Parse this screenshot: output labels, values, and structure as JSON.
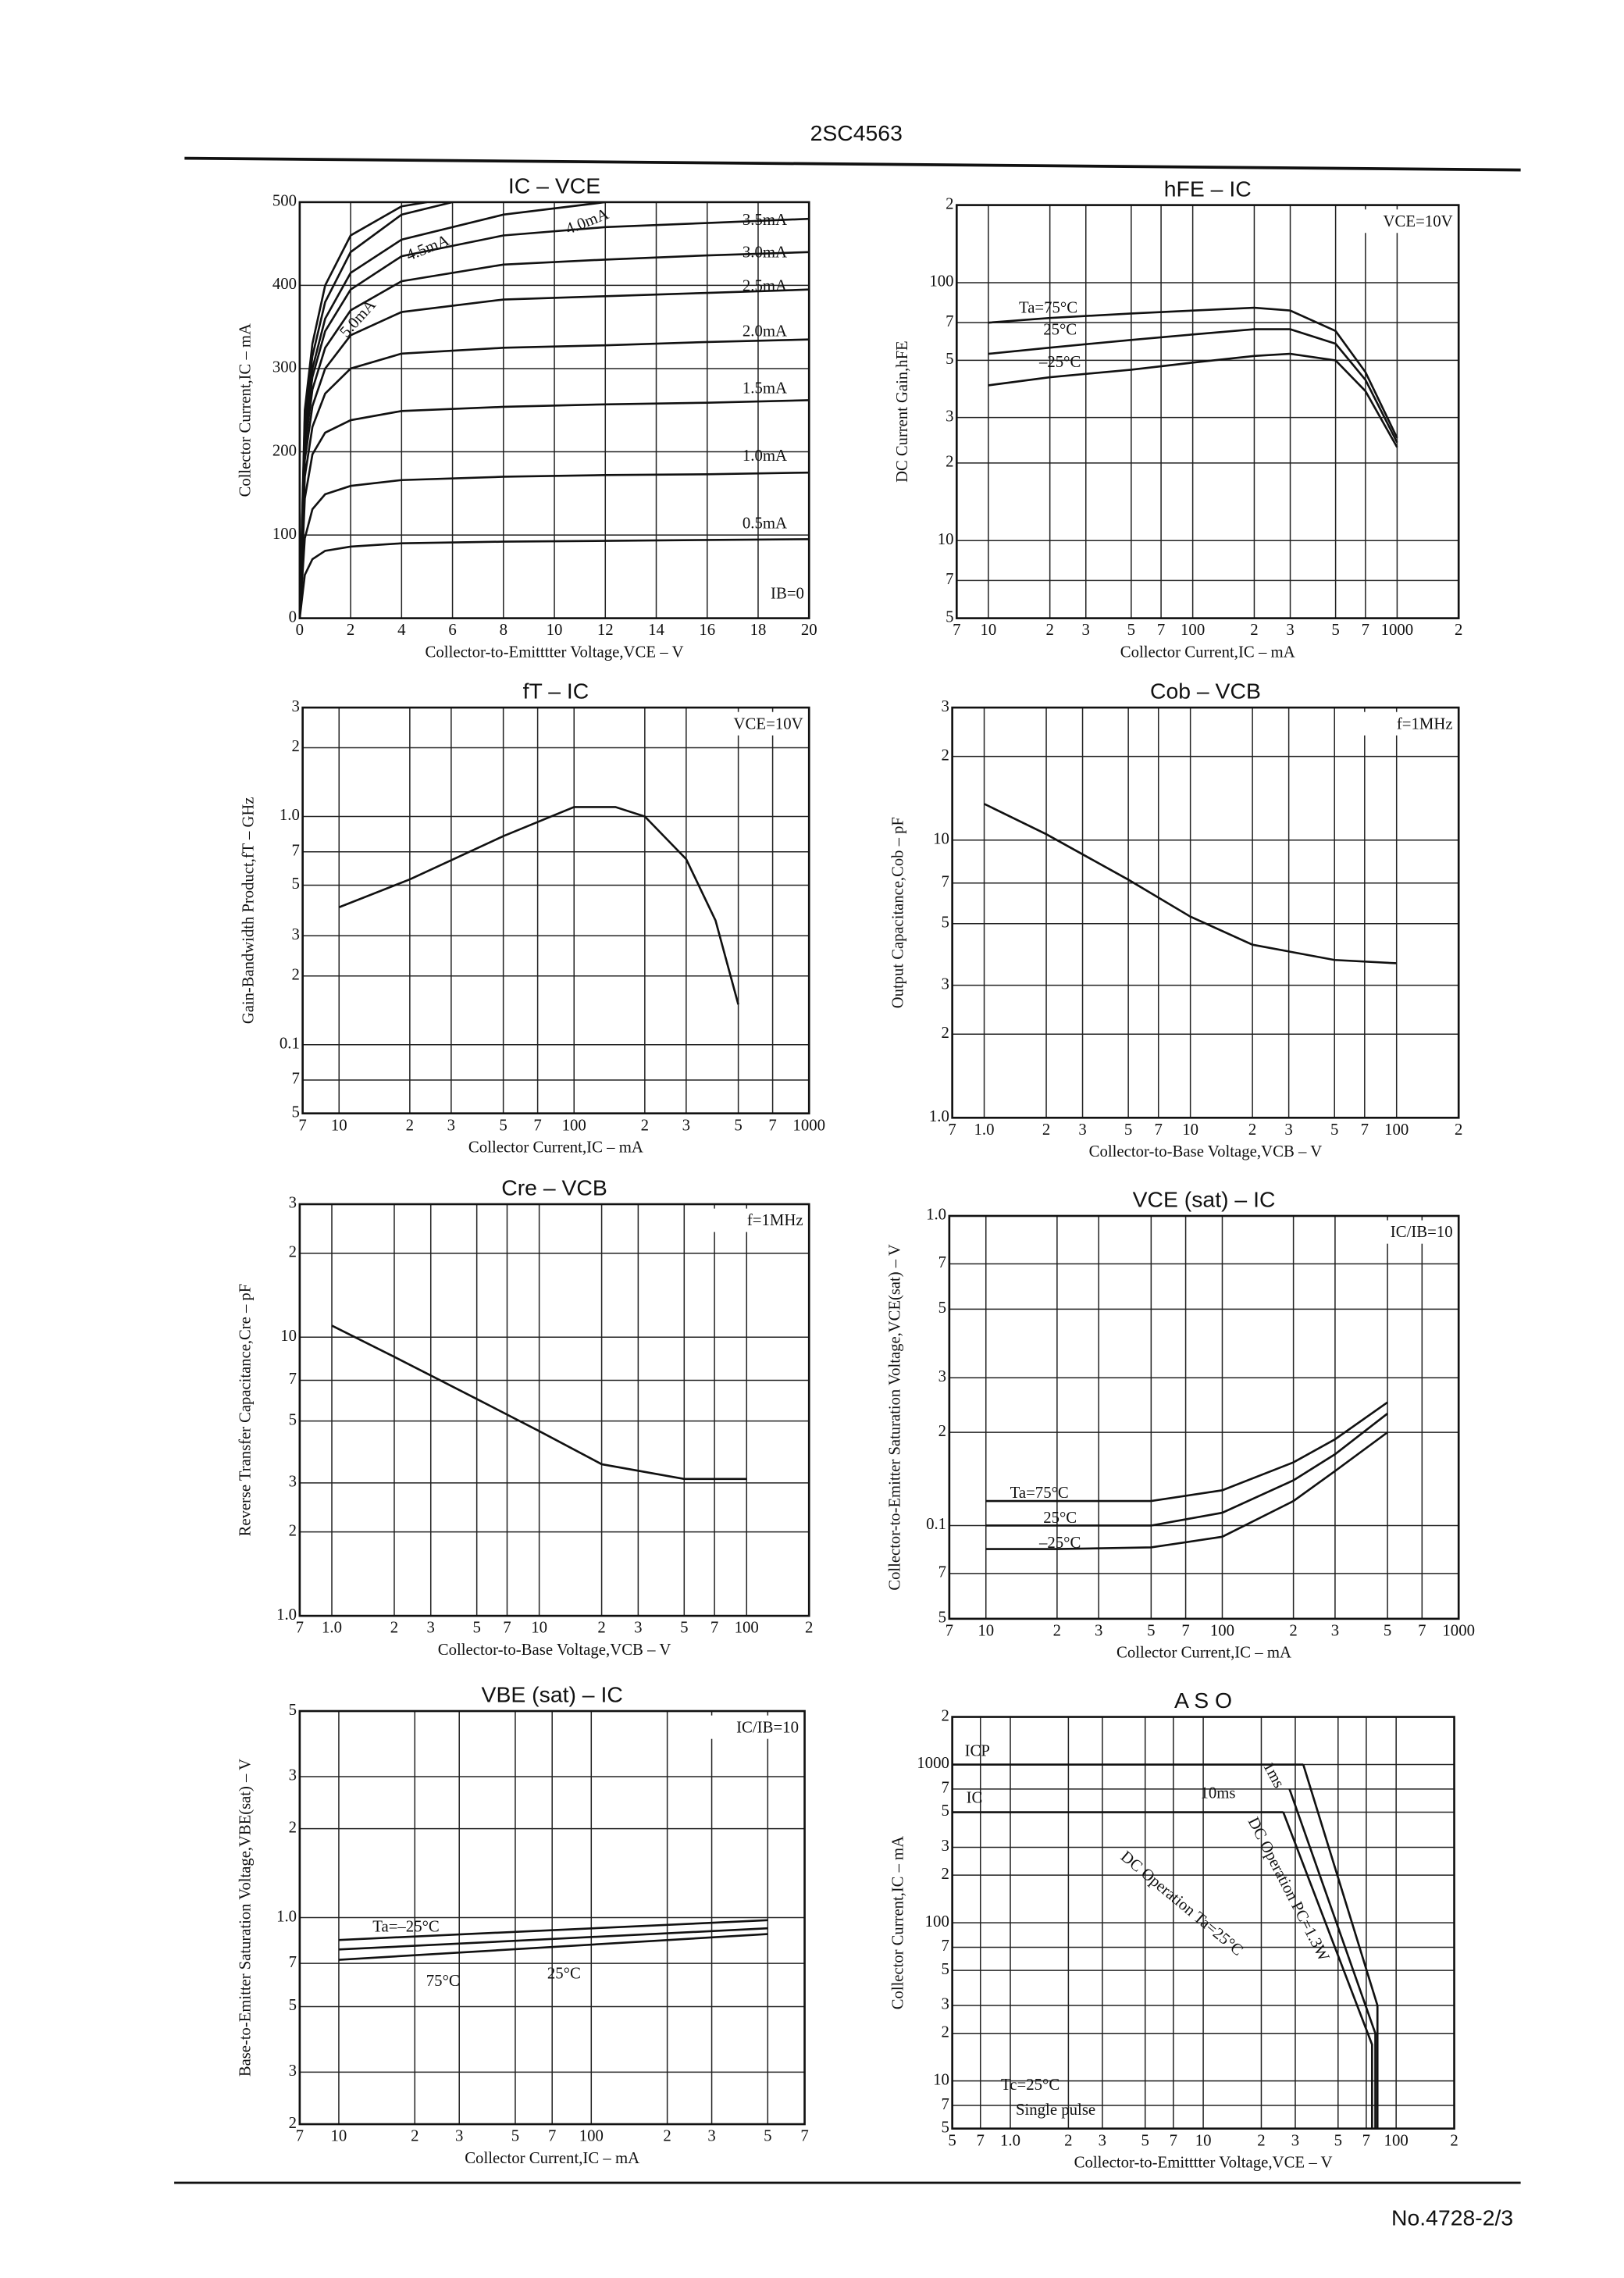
{
  "header": {
    "title": "2SC4563"
  },
  "footer": {
    "text": "No.4728-2/3"
  },
  "chart_data": [
    {
      "type": "line",
      "title": "IC – VCE",
      "x_label": "Collector-to-Emitttter Voltage,VCE – V",
      "y_label": "Collector Current,IC – mA",
      "xscale": "linear",
      "yscale": "linear",
      "grid": true,
      "color": "#111",
      "xlim": [
        0,
        20
      ],
      "ylim": [
        0,
        500
      ],
      "xticks": [
        0,
        2,
        4,
        6,
        8,
        10,
        12,
        14,
        16,
        18,
        20
      ],
      "yticks": [
        0,
        100,
        200,
        300,
        400,
        500
      ],
      "annotations": [
        "IB=0"
      ],
      "series": [
        {
          "name": "0.5mA",
          "x": [
            0,
            0.2,
            0.5,
            1,
            2,
            4,
            8,
            12,
            16,
            20
          ],
          "values": [
            0,
            52,
            71,
            81,
            86,
            90,
            92,
            93,
            94,
            95
          ]
        },
        {
          "name": "1.0mA",
          "x": [
            0,
            0.2,
            0.5,
            1,
            2,
            4,
            8,
            12,
            16,
            20
          ],
          "values": [
            0,
            96,
            131,
            149,
            159,
            166,
            170,
            172,
            173,
            175
          ]
        },
        {
          "name": "1.5mA",
          "x": [
            0,
            0.2,
            0.5,
            1,
            2,
            4,
            8,
            12,
            16,
            20
          ],
          "values": [
            0,
            144,
            197,
            223,
            238,
            249,
            254,
            257,
            259,
            262
          ]
        },
        {
          "name": "2.0mA",
          "x": [
            0,
            0.2,
            0.5,
            1,
            2,
            4,
            8,
            12,
            16,
            20
          ],
          "values": [
            0,
            170,
            230,
            270,
            300,
            318,
            325,
            328,
            332,
            335
          ]
        },
        {
          "name": "2.5mA",
          "x": [
            0,
            0.2,
            0.5,
            1,
            2,
            4,
            8,
            12,
            16,
            20
          ],
          "values": [
            0,
            190,
            255,
            300,
            340,
            368,
            383,
            387,
            391,
            395
          ]
        },
        {
          "name": "3.0mA",
          "x": [
            0,
            0.2,
            0.5,
            1,
            2,
            4,
            8,
            12,
            16,
            20
          ],
          "values": [
            0,
            205,
            275,
            325,
            370,
            405,
            425,
            431,
            436,
            440
          ]
        },
        {
          "name": "3.5mA",
          "x": [
            0,
            0.2,
            0.5,
            1,
            2,
            4,
            8,
            12,
            16,
            20
          ],
          "values": [
            0,
            220,
            290,
            345,
            395,
            435,
            460,
            470,
            475,
            480
          ]
        },
        {
          "name": "4.0mA",
          "x": [
            0,
            0.2,
            0.5,
            1,
            2,
            4,
            8,
            12
          ],
          "values": [
            0,
            230,
            300,
            360,
            415,
            455,
            485,
            500
          ]
        },
        {
          "name": "4.5mA",
          "x": [
            0,
            0.2,
            0.5,
            1,
            2,
            4,
            6
          ],
          "values": [
            0,
            240,
            315,
            380,
            440,
            485,
            500
          ]
        },
        {
          "name": "5.0mA",
          "x": [
            0,
            0.2,
            0.5,
            1,
            2,
            4,
            5
          ],
          "values": [
            0,
            250,
            330,
            400,
            460,
            495,
            500
          ]
        }
      ]
    },
    {
      "type": "line",
      "title": "hFE – IC",
      "x_label": "Collector Current,IC – mA",
      "y_label": "DC Current Gain,hFE",
      "xscale": "log",
      "yscale": "log",
      "grid": true,
      "color": "#111",
      "condition": "VCE=10V",
      "xlim": [
        7,
        2000
      ],
      "ylim": [
        5,
        200
      ],
      "xticks": [
        7,
        10,
        {
          "value": 20,
          "label": "2"
        },
        {
          "value": 30,
          "label": "3"
        },
        {
          "value": 50,
          "label": "5"
        },
        {
          "value": 70,
          "label": "7"
        },
        100,
        {
          "value": 200,
          "label": "2"
        },
        {
          "value": 300,
          "label": "3"
        },
        {
          "value": 500,
          "label": "5"
        },
        {
          "value": 700,
          "label": "7"
        },
        1000,
        {
          "value": 2000,
          "label": "2"
        }
      ],
      "yticks": [
        5,
        7,
        10,
        {
          "value": 20,
          "label": "2"
        },
        {
          "value": 30,
          "label": "3"
        },
        {
          "value": 50,
          "label": "5"
        },
        {
          "value": 70,
          "label": "7"
        },
        100,
        {
          "value": 200,
          "label": "2"
        }
      ],
      "series": [
        {
          "name": "Ta=75°C",
          "x": [
            10,
            20,
            50,
            100,
            200,
            300,
            500,
            700,
            1000
          ],
          "values": [
            70,
            73,
            76,
            78,
            80,
            78,
            65,
            45,
            25
          ]
        },
        {
          "name": "25°C",
          "x": [
            10,
            20,
            50,
            100,
            200,
            300,
            500,
            700,
            1000
          ],
          "values": [
            53,
            56,
            60,
            63,
            66,
            66,
            58,
            42,
            24
          ]
        },
        {
          "name": "–25°C",
          "x": [
            10,
            20,
            50,
            100,
            200,
            300,
            500,
            700,
            1000
          ],
          "values": [
            40,
            43,
            46,
            49,
            52,
            53,
            50,
            38,
            23
          ]
        }
      ]
    },
    {
      "type": "line",
      "title": "fT – IC",
      "x_label": "Collector Current,IC – mA",
      "y_label": "Gain-Bandwidth Product,fT – GHz",
      "xscale": "log",
      "yscale": "log",
      "grid": true,
      "color": "#111",
      "condition": "VCE=10V",
      "xlim": [
        7,
        1000
      ],
      "ylim": [
        0.05,
        3
      ],
      "xticks": [
        7,
        10,
        {
          "value": 20,
          "label": "2"
        },
        {
          "value": 30,
          "label": "3"
        },
        {
          "value": 50,
          "label": "5"
        },
        {
          "value": 70,
          "label": "7"
        },
        100,
        {
          "value": 200,
          "label": "2"
        },
        {
          "value": 300,
          "label": "3"
        },
        {
          "value": 500,
          "label": "5"
        },
        {
          "value": 700,
          "label": "7"
        },
        1000
      ],
      "yticks": [
        {
          "value": 0.05,
          "label": "5"
        },
        {
          "value": 0.07,
          "label": "7"
        },
        0.1,
        {
          "value": 0.2,
          "label": "2"
        },
        {
          "value": 0.3,
          "label": "3"
        },
        {
          "value": 0.5,
          "label": "5"
        },
        {
          "value": 0.7,
          "label": "7"
        },
        {
          "value": 1,
          "label": "1.0"
        },
        2,
        3
      ],
      "x": [
        10,
        20,
        50,
        100,
        150,
        200,
        300,
        400,
        500
      ],
      "values": [
        0.4,
        0.53,
        0.82,
        1.1,
        1.1,
        1.0,
        0.65,
        0.35,
        0.15
      ]
    },
    {
      "type": "line",
      "title": "Cob – VCB",
      "x_label": "Collector-to-Base Voltage,VCB – V",
      "y_label": "Output Capacitance,Cob – pF",
      "xscale": "log",
      "yscale": "log",
      "grid": true,
      "color": "#111",
      "condition": "f=1MHz",
      "xlim": [
        0.7,
        200
      ],
      "ylim": [
        1,
        30
      ],
      "xticks": [
        {
          "value": 0.7,
          "label": "7"
        },
        {
          "value": 1,
          "label": "1.0"
        },
        2,
        3,
        5,
        7,
        10,
        {
          "value": 20,
          "label": "2"
        },
        {
          "value": 30,
          "label": "3"
        },
        {
          "value": 50,
          "label": "5"
        },
        {
          "value": 70,
          "label": "7"
        },
        100,
        {
          "value": 200,
          "label": "2"
        }
      ],
      "yticks": [
        {
          "value": 1,
          "label": "1.0"
        },
        2,
        3,
        5,
        7,
        10,
        {
          "value": 20,
          "label": "2"
        },
        {
          "value": 30,
          "label": "3"
        }
      ],
      "x": [
        1,
        2,
        5,
        10,
        20,
        50,
        100
      ],
      "values": [
        13.5,
        10.5,
        7.2,
        5.3,
        4.2,
        3.7,
        3.6
      ]
    },
    {
      "type": "line",
      "title": "Cre – VCB",
      "x_label": "Collector-to-Base Voltage,VCB – V",
      "y_label": "Reverse Transfer Capacitance,Cre – pF",
      "xscale": "log",
      "yscale": "log",
      "grid": true,
      "color": "#111",
      "condition": "f=1MHz",
      "xlim": [
        0.7,
        200
      ],
      "ylim": [
        1,
        30
      ],
      "xticks": [
        {
          "value": 0.7,
          "label": "7"
        },
        {
          "value": 1,
          "label": "1.0"
        },
        2,
        3,
        5,
        7,
        10,
        {
          "value": 20,
          "label": "2"
        },
        {
          "value": 30,
          "label": "3"
        },
        {
          "value": 50,
          "label": "5"
        },
        {
          "value": 70,
          "label": "7"
        },
        100,
        {
          "value": 200,
          "label": "2"
        }
      ],
      "yticks": [
        {
          "value": 1,
          "label": "1.0"
        },
        2,
        3,
        5,
        7,
        10,
        {
          "value": 20,
          "label": "2"
        },
        {
          "value": 30,
          "label": "3"
        }
      ],
      "x": [
        1,
        2,
        5,
        10,
        20,
        50,
        100
      ],
      "values": [
        11,
        8.5,
        6,
        4.6,
        3.5,
        3.1,
        3.1
      ]
    },
    {
      "type": "line",
      "title": "VCE (sat) – IC",
      "x_label": "Collector Current,IC – mA",
      "y_label": "Collector-to-Emitter Saturation Voltage,VCE(sat) – V",
      "xscale": "log",
      "yscale": "log",
      "grid": true,
      "color": "#111",
      "condition": "IC/IB=10",
      "xlim": [
        7,
        1000
      ],
      "ylim": [
        0.05,
        1
      ],
      "xticks": [
        7,
        10,
        {
          "value": 20,
          "label": "2"
        },
        {
          "value": 30,
          "label": "3"
        },
        {
          "value": 50,
          "label": "5"
        },
        {
          "value": 70,
          "label": "7"
        },
        100,
        {
          "value": 200,
          "label": "2"
        },
        {
          "value": 300,
          "label": "3"
        },
        {
          "value": 500,
          "label": "5"
        },
        {
          "value": 700,
          "label": "7"
        },
        1000
      ],
      "yticks": [
        {
          "value": 0.05,
          "label": "5"
        },
        {
          "value": 0.07,
          "label": "7"
        },
        0.1,
        {
          "value": 0.2,
          "label": "2"
        },
        {
          "value": 0.3,
          "label": "3"
        },
        {
          "value": 0.5,
          "label": "5"
        },
        {
          "value": 0.7,
          "label": "7"
        },
        {
          "value": 1,
          "label": "1.0"
        }
      ],
      "series": [
        {
          "name": "Ta=75°C",
          "x": [
            10,
            20,
            50,
            100,
            200,
            300,
            500
          ],
          "values": [
            0.12,
            0.12,
            0.12,
            0.13,
            0.16,
            0.19,
            0.25
          ]
        },
        {
          "name": "25°C",
          "x": [
            10,
            20,
            50,
            100,
            200,
            300,
            500
          ],
          "values": [
            0.1,
            0.1,
            0.1,
            0.11,
            0.14,
            0.17,
            0.23
          ]
        },
        {
          "name": "–25°C",
          "x": [
            10,
            20,
            50,
            100,
            200,
            300,
            500
          ],
          "values": [
            0.084,
            0.084,
            0.085,
            0.092,
            0.12,
            0.15,
            0.2
          ]
        }
      ]
    },
    {
      "type": "line",
      "title": "VBE (sat) – IC",
      "x_label": "Collector Current,IC – mA",
      "y_label": "Base-to-Emitter Saturation Voltage,VBE(sat) – V",
      "xscale": "log",
      "yscale": "log",
      "grid": true,
      "color": "#111",
      "condition": "IC/IB=10",
      "xlim": [
        7,
        700
      ],
      "ylim": [
        0.2,
        5
      ],
      "xticks": [
        7,
        10,
        {
          "value": 20,
          "label": "2"
        },
        {
          "value": 30,
          "label": "3"
        },
        {
          "value": 50,
          "label": "5"
        },
        {
          "value": 70,
          "label": "7"
        },
        100,
        {
          "value": 200,
          "label": "2"
        },
        {
          "value": 300,
          "label": "3"
        },
        {
          "value": 500,
          "label": "5"
        },
        {
          "value": 700,
          "label": "7"
        }
      ],
      "yticks": [
        {
          "value": 0.2,
          "label": "2"
        },
        {
          "value": 0.3,
          "label": "3"
        },
        {
          "value": 0.5,
          "label": "5"
        },
        {
          "value": 0.7,
          "label": "7"
        },
        {
          "value": 1,
          "label": "1.0"
        },
        2,
        3,
        5
      ],
      "series": [
        {
          "name": "Ta=–25°C",
          "x": [
            10,
            500
          ],
          "values": [
            0.84,
            0.98
          ]
        },
        {
          "name": "25°C",
          "x": [
            10,
            500
          ],
          "values": [
            0.78,
            0.92
          ]
        },
        {
          "name": "75°C",
          "x": [
            10,
            500
          ],
          "values": [
            0.72,
            0.88
          ]
        }
      ]
    },
    {
      "type": "line",
      "title": "A S O",
      "x_label": "Collector-to-Emitttter Voltage,VCE – V",
      "y_label": "Collector Current,IC – mA",
      "xscale": "log",
      "yscale": "log",
      "grid": true,
      "color": "#111",
      "xlim": [
        0.5,
        200
      ],
      "ylim": [
        5,
        2000
      ],
      "xticks": [
        {
          "value": 0.5,
          "label": "5"
        },
        {
          "value": 0.7,
          "label": "7"
        },
        {
          "value": 1,
          "label": "1.0"
        },
        2,
        3,
        5,
        7,
        10,
        {
          "value": 20,
          "label": "2"
        },
        {
          "value": 30,
          "label": "3"
        },
        {
          "value": 50,
          "label": "5"
        },
        {
          "value": 70,
          "label": "7"
        },
        100,
        {
          "value": 200,
          "label": "2"
        }
      ],
      "yticks": [
        5,
        7,
        10,
        {
          "value": 20,
          "label": "2"
        },
        {
          "value": 30,
          "label": "3"
        },
        {
          "value": 50,
          "label": "5"
        },
        {
          "value": 70,
          "label": "7"
        },
        100,
        {
          "value": 200,
          "label": "2"
        },
        {
          "value": 300,
          "label": "3"
        },
        {
          "value": 500,
          "label": "5"
        },
        {
          "value": 700,
          "label": "7"
        },
        1000,
        {
          "value": 2000,
          "label": "2"
        }
      ],
      "annotations": [
        "DC Operation Ta=25°C",
        "Tc=25°C",
        "Single pulse"
      ],
      "series": [
        {
          "name": "ICP",
          "x": [
            0.5,
            33
          ],
          "values": [
            1000,
            1000
          ]
        },
        {
          "name": "IC",
          "x": [
            0.5,
            26
          ],
          "values": [
            500,
            500
          ]
        },
        {
          "name": "10ms",
          "x": [
            28,
            78,
            78
          ],
          "values": [
            700,
            20,
            5
          ]
        },
        {
          "name": "1ms",
          "x": [
            33,
            80,
            80
          ],
          "values": [
            1000,
            30,
            5
          ]
        },
        {
          "name": "DC Operation PC=1.3W",
          "x": [
            26,
            75,
            75
          ],
          "values": [
            500,
            17,
            5
          ]
        }
      ]
    }
  ]
}
